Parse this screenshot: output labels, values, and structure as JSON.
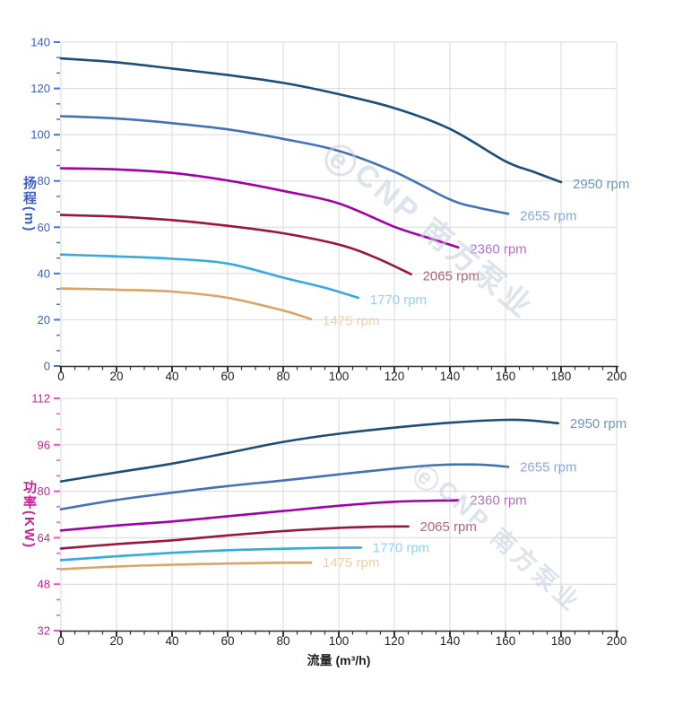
{
  "watermark": {
    "logo_letter": "e",
    "text": "CNP 南方泵业"
  },
  "palette": {
    "grid": "#d9d9d9",
    "x_axis_line": "#333333",
    "x_tick": "#333333",
    "x_label": "#222222"
  },
  "chart_data": [
    {
      "type": "line",
      "id": "head-curves",
      "title": "",
      "ylabel": "扬程(m)",
      "xlabel": "",
      "y_axis": {
        "title": "扬程(m)",
        "min": 0,
        "max": 140,
        "major_step": 20,
        "minor_divisions": 3,
        "label_color": "#3b5ed1",
        "tick_color": "#4f6fd8",
        "tick_labels": [
          "0",
          "20",
          "40",
          "60",
          "80",
          "100",
          "120",
          "140"
        ]
      },
      "x_axis": {
        "title": "",
        "min": 0,
        "max": 200,
        "major_step": 20,
        "minor_divisions": 4,
        "show_labels": true,
        "tick_labels": [
          "0",
          "20",
          "40",
          "60",
          "80",
          "100",
          "120",
          "140",
          "160",
          "180",
          "200"
        ]
      },
      "grid": true,
      "legend_position": "curve-end-labels",
      "series": [
        {
          "name": "2950 rpm",
          "rpm": 2950,
          "color": "#1c4e79",
          "label_color": "#7096ba",
          "points": [
            [
              0,
              133
            ],
            [
              20,
              131.3
            ],
            [
              40,
              128.6
            ],
            [
              60,
              125.8
            ],
            [
              80,
              122.4
            ],
            [
              100,
              117.5
            ],
            [
              120,
              111.5
            ],
            [
              140,
              102.5
            ],
            [
              160,
              88.5
            ],
            [
              170,
              84
            ],
            [
              180,
              79.5
            ]
          ]
        },
        {
          "name": "2655 rpm",
          "rpm": 2655,
          "color": "#4472b8",
          "label_color": "#8ca6dc",
          "points": [
            [
              0,
              108
            ],
            [
              20,
              107
            ],
            [
              40,
              105
            ],
            [
              60,
              102.3
            ],
            [
              80,
              98.2
            ],
            [
              100,
              93
            ],
            [
              120,
              84
            ],
            [
              140,
              72
            ],
            [
              150,
              68.5
            ],
            [
              161,
              65.8
            ]
          ]
        },
        {
          "name": "2360 rpm",
          "rpm": 2360,
          "color": "#a000a8",
          "label_color": "#b470c8",
          "points": [
            [
              0,
              85.5
            ],
            [
              20,
              85
            ],
            [
              40,
              83.5
            ],
            [
              60,
              80.2
            ],
            [
              80,
              75.7
            ],
            [
              100,
              70.3
            ],
            [
              120,
              60.2
            ],
            [
              132,
              55.5
            ],
            [
              143,
              51.3
            ]
          ]
        },
        {
          "name": "2065 rpm",
          "rpm": 2065,
          "color": "#9c1440",
          "label_color": "#b26480",
          "points": [
            [
              0,
              65.3
            ],
            [
              20,
              64.6
            ],
            [
              40,
              63.1
            ],
            [
              60,
              60.6
            ],
            [
              80,
              57.4
            ],
            [
              100,
              52.5
            ],
            [
              113,
              47
            ],
            [
              126,
              39.7
            ]
          ]
        },
        {
          "name": "1770 rpm",
          "rpm": 1770,
          "color": "#35aae0",
          "label_color": "#93d2f2",
          "points": [
            [
              0,
              48.2
            ],
            [
              20,
              47.4
            ],
            [
              40,
              46.4
            ],
            [
              60,
              44.3
            ],
            [
              80,
              38.2
            ],
            [
              95,
              33.8
            ],
            [
              107,
              29.5
            ]
          ]
        },
        {
          "name": "1475 rpm",
          "rpm": 1475,
          "color": "#d9a566",
          "label_color": "#ead1a8",
          "points": [
            [
              0,
              33.5
            ],
            [
              20,
              33
            ],
            [
              40,
              32.2
            ],
            [
              60,
              29.5
            ],
            [
              80,
              24
            ],
            [
              90,
              20.3
            ]
          ]
        }
      ]
    },
    {
      "type": "line",
      "id": "power-curves",
      "title": "",
      "ylabel": "功率(KW)",
      "xlabel": "流量 (m³/h)",
      "y_axis": {
        "title": "功率(KW)",
        "min": 32,
        "max": 112,
        "major_step": 16,
        "minor_divisions": 3,
        "label_color": "#cc1f97",
        "tick_color": "#ee55bb",
        "tick_labels": [
          "32",
          "48",
          "64",
          "80",
          "96",
          "112"
        ]
      },
      "x_axis": {
        "title": "流量 (m³/h)",
        "min": 0,
        "max": 200,
        "major_step": 20,
        "minor_divisions": 4,
        "show_labels": true,
        "tick_labels": [
          "0",
          "20",
          "40",
          "60",
          "80",
          "100",
          "120",
          "140",
          "160",
          "180",
          "200"
        ]
      },
      "grid": true,
      "legend_position": "curve-end-labels",
      "series": [
        {
          "name": "2950 rpm",
          "rpm": 2950,
          "color": "#1c4e79",
          "label_color": "#7096ba",
          "points": [
            [
              0,
              83.4
            ],
            [
              20,
              86.5
            ],
            [
              40,
              89.5
            ],
            [
              60,
              93.2
            ],
            [
              80,
              97
            ],
            [
              100,
              99.8
            ],
            [
              120,
              101.9
            ],
            [
              140,
              103.6
            ],
            [
              160,
              104.6
            ],
            [
              170,
              104.3
            ],
            [
              179,
              103.4
            ]
          ]
        },
        {
          "name": "2655 rpm",
          "rpm": 2655,
          "color": "#4472b8",
          "label_color": "#8ca6dc",
          "points": [
            [
              0,
              73.8
            ],
            [
              20,
              77
            ],
            [
              40,
              79.5
            ],
            [
              60,
              81.8
            ],
            [
              80,
              83.7
            ],
            [
              100,
              85.8
            ],
            [
              120,
              87.8
            ],
            [
              135,
              89
            ],
            [
              150,
              89.2
            ],
            [
              161,
              88.4
            ]
          ]
        },
        {
          "name": "2360 rpm",
          "rpm": 2360,
          "color": "#a000a8",
          "label_color": "#b470c8",
          "points": [
            [
              0,
              66.5
            ],
            [
              20,
              68.2
            ],
            [
              40,
              69.6
            ],
            [
              60,
              71.4
            ],
            [
              80,
              73.2
            ],
            [
              100,
              75
            ],
            [
              120,
              76.4
            ],
            [
              143,
              76.9
            ]
          ]
        },
        {
          "name": "2065 rpm",
          "rpm": 2065,
          "color": "#9c1440",
          "label_color": "#b26480",
          "points": [
            [
              0,
              60.3
            ],
            [
              20,
              61.8
            ],
            [
              40,
              63.1
            ],
            [
              60,
              64.8
            ],
            [
              80,
              66.3
            ],
            [
              100,
              67.4
            ],
            [
              113,
              67.8
            ],
            [
              125,
              67.9
            ]
          ]
        },
        {
          "name": "1770 rpm",
          "rpm": 1770,
          "color": "#35aae0",
          "label_color": "#93d2f2",
          "points": [
            [
              0,
              56.3
            ],
            [
              20,
              57.6
            ],
            [
              40,
              58.8
            ],
            [
              60,
              59.7
            ],
            [
              80,
              60.2
            ],
            [
              95,
              60.5
            ],
            [
              108,
              60.6
            ]
          ]
        },
        {
          "name": "1475 rpm",
          "rpm": 1475,
          "color": "#d9a566",
          "label_color": "#ead1a8",
          "points": [
            [
              0,
              53.2
            ],
            [
              20,
              54.1
            ],
            [
              40,
              54.7
            ],
            [
              60,
              55.1
            ],
            [
              80,
              55.4
            ],
            [
              90,
              55.4
            ]
          ]
        }
      ]
    }
  ]
}
